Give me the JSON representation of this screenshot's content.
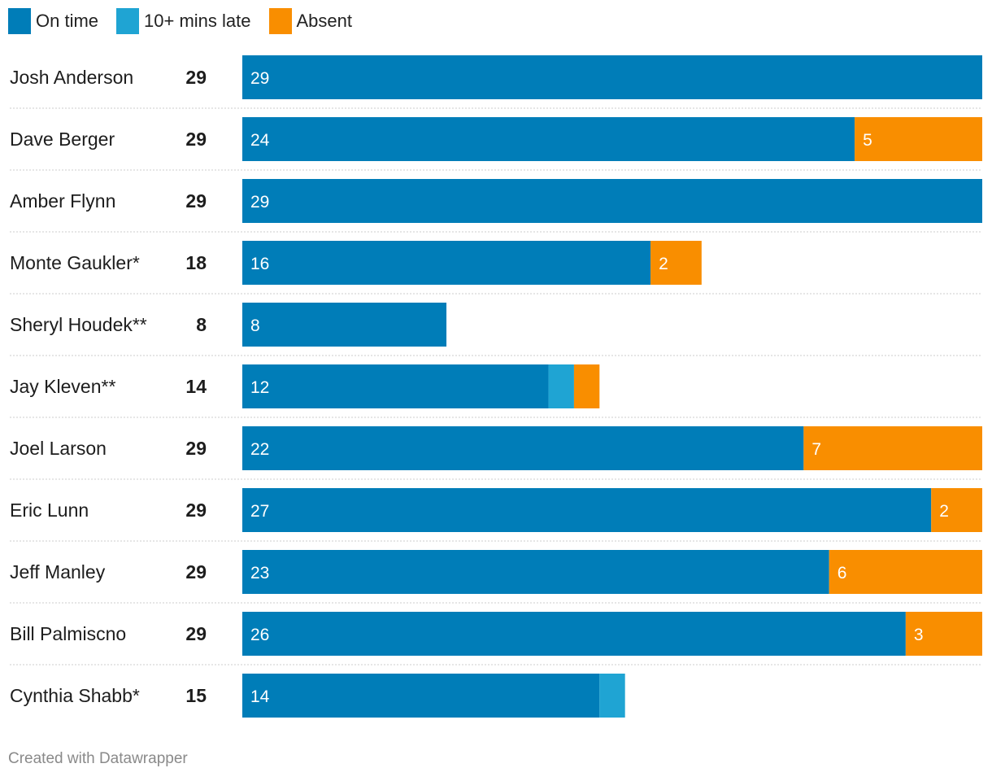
{
  "legend": {
    "on_time": "On time",
    "late": "10+ mins late",
    "absent": "Absent"
  },
  "colors": {
    "on_time": "#007db8",
    "late": "#1fa4d3",
    "absent": "#f98e00",
    "divider": "#cccccc",
    "label_inside": "#ffffff"
  },
  "footer": "Created with Datawrapper",
  "chart_data": {
    "type": "bar",
    "orientation": "horizontal",
    "stacked": true,
    "xlim": [
      0,
      29
    ],
    "categories": [
      "Josh Anderson",
      "Dave Berger",
      "Amber Flynn",
      "Monte Gaukler*",
      "Sheryl Houdek**",
      "Jay Kleven**",
      "Joel Larson",
      "Eric Lunn",
      "Jeff Manley",
      "Bill Palmiscno",
      "Cynthia Shabb*"
    ],
    "totals": [
      29,
      29,
      29,
      18,
      8,
      14,
      29,
      29,
      29,
      29,
      15
    ],
    "series": [
      {
        "name": "On time",
        "key": "on_time",
        "values": [
          29,
          24,
          29,
          16,
          8,
          12,
          22,
          27,
          23,
          26,
          14
        ],
        "show_labels": [
          true,
          true,
          true,
          true,
          true,
          true,
          true,
          true,
          true,
          true,
          true
        ]
      },
      {
        "name": "10+ mins late",
        "key": "late",
        "values": [
          0,
          0,
          0,
          0,
          0,
          1,
          0,
          0,
          0,
          0,
          1
        ],
        "show_labels": [
          false,
          false,
          false,
          false,
          false,
          false,
          false,
          false,
          false,
          false,
          false
        ]
      },
      {
        "name": "Absent",
        "key": "absent",
        "values": [
          0,
          5,
          0,
          2,
          0,
          1,
          7,
          2,
          6,
          3,
          0
        ],
        "show_labels": [
          false,
          true,
          false,
          true,
          false,
          false,
          true,
          true,
          true,
          true,
          false
        ]
      }
    ],
    "title": "",
    "xlabel": "",
    "ylabel": "",
    "grid": false,
    "legend_position": "top-left"
  }
}
